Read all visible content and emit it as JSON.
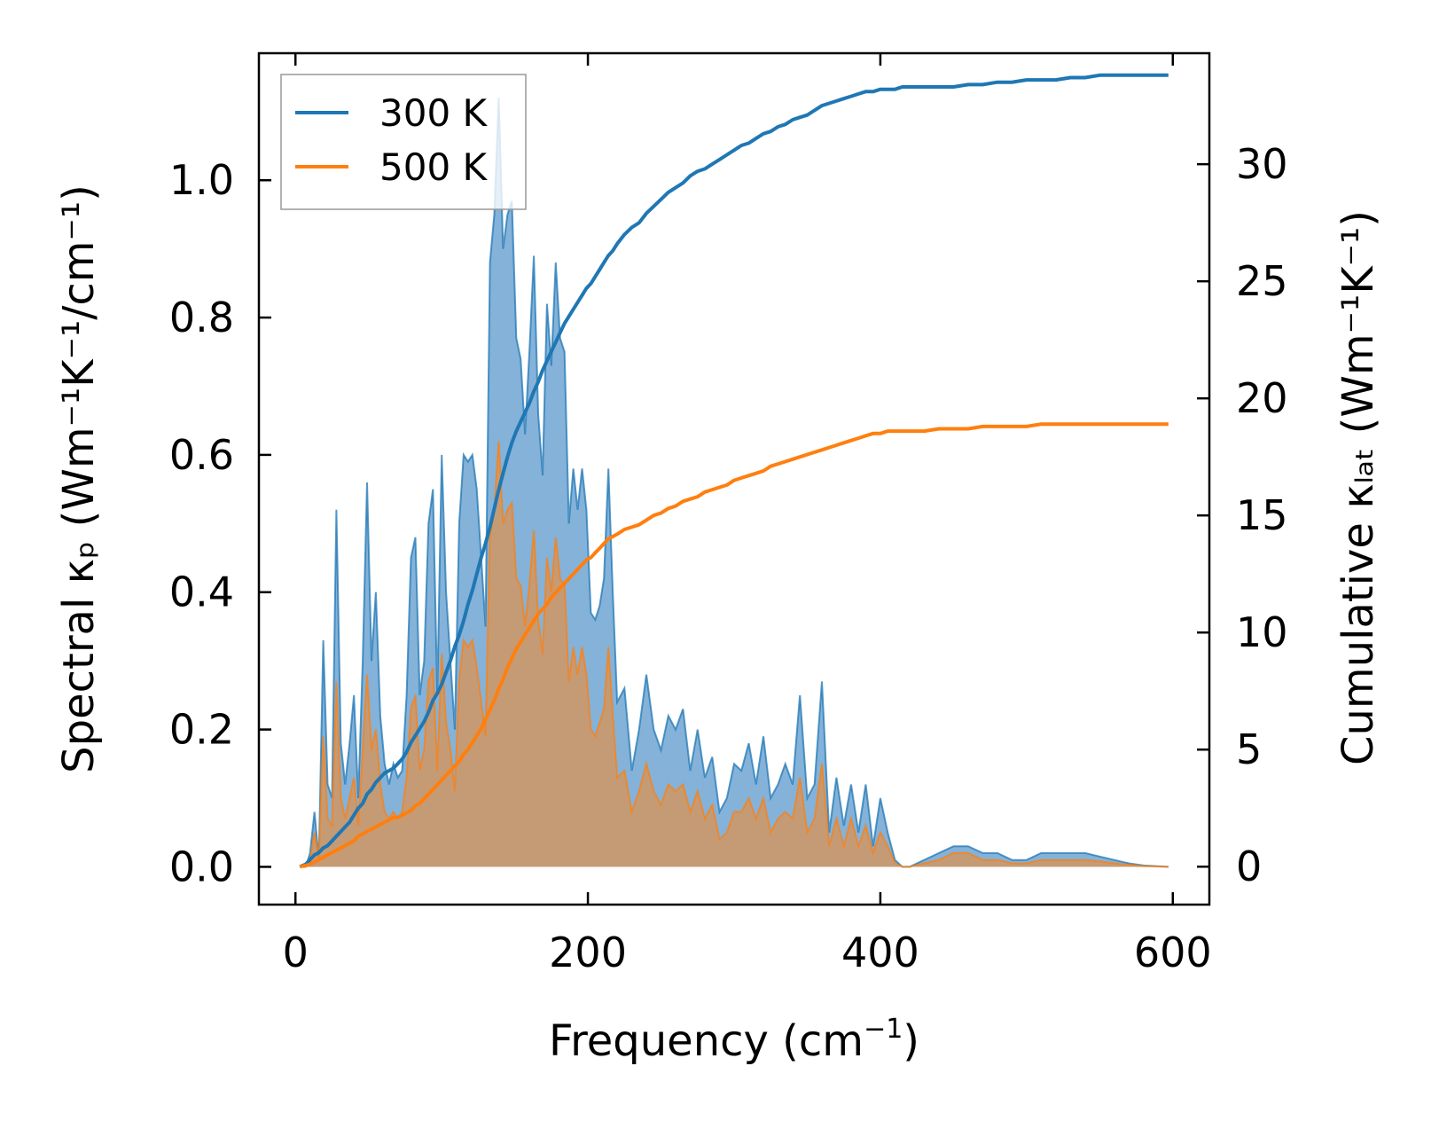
{
  "chart_data": {
    "type": "area+line",
    "title": "",
    "xlabel": "Frequency (cm",
    "xlabel_sup": "−1",
    "xlabel_tail": ")",
    "ylabel": "Spectral κₚ (Wm⁻¹K⁻¹/cm⁻¹)",
    "ylabel_right": "Cumulative κₗₐₜ (Wm⁻¹K⁻¹)",
    "xlim": [
      -25,
      625
    ],
    "ylim_left": [
      -0.055,
      1.185
    ],
    "ylim_right": [
      -1.62,
      34.74
    ],
    "xticks": [
      0,
      200,
      400,
      600
    ],
    "xtick_labels": [
      "0",
      "200",
      "400",
      "600"
    ],
    "yticks_left": [
      0.0,
      0.2,
      0.4,
      0.6,
      0.8,
      1.0
    ],
    "ytick_labels_left": [
      "0.0",
      "0.2",
      "0.4",
      "0.6",
      "0.8",
      "1.0"
    ],
    "yticks_right": [
      0,
      5,
      10,
      15,
      20,
      25,
      30
    ],
    "ytick_labels_right": [
      "0",
      "5",
      "10",
      "15",
      "20",
      "25",
      "30"
    ],
    "legend": {
      "position": "top-left",
      "entries": [
        "300 K",
        "500 K"
      ]
    },
    "colors": {
      "300K": "#1f77b4",
      "500K": "#ff7f0e",
      "fill300": "#6fa5d2",
      "fill500": "#c89a70"
    },
    "frequency": [
      3,
      7,
      10,
      13,
      16,
      19,
      22,
      25,
      28,
      31,
      34,
      37,
      40,
      43,
      46,
      49,
      52,
      55,
      58,
      61,
      64,
      67,
      70,
      73,
      76,
      79,
      82,
      85,
      88,
      91,
      94,
      97,
      100,
      103,
      106,
      109,
      112,
      115,
      118,
      121,
      124,
      127,
      130,
      133,
      136,
      139,
      142,
      145,
      148,
      151,
      154,
      157,
      160,
      163,
      166,
      169,
      172,
      175,
      178,
      181,
      184,
      187,
      190,
      193,
      196,
      199,
      202,
      205,
      208,
      211,
      214,
      217,
      220,
      225,
      230,
      235,
      240,
      245,
      250,
      255,
      260,
      265,
      270,
      275,
      280,
      285,
      290,
      295,
      300,
      305,
      310,
      315,
      320,
      325,
      330,
      335,
      340,
      345,
      350,
      355,
      360,
      365,
      370,
      375,
      380,
      385,
      390,
      395,
      400,
      405,
      410,
      415,
      420,
      430,
      440,
      450,
      460,
      470,
      480,
      490,
      500,
      510,
      520,
      530,
      540,
      550,
      560,
      570,
      580,
      597
    ],
    "series": [
      {
        "name": "300 K",
        "spectral": [
          0,
          0,
          0.02,
          0.08,
          0.01,
          0.33,
          0.12,
          0.1,
          0.52,
          0.18,
          0.12,
          0.18,
          0.25,
          0.1,
          0.3,
          0.56,
          0.3,
          0.4,
          0.22,
          0.15,
          0.12,
          0.15,
          0.13,
          0.14,
          0.25,
          0.45,
          0.48,
          0.25,
          0.3,
          0.5,
          0.55,
          0.25,
          0.6,
          0.4,
          0.3,
          0.2,
          0.5,
          0.6,
          0.59,
          0.6,
          0.55,
          0.45,
          0.35,
          0.88,
          0.95,
          1.12,
          0.9,
          0.95,
          0.97,
          0.77,
          0.74,
          0.63,
          0.75,
          0.89,
          0.66,
          0.57,
          0.82,
          0.73,
          0.88,
          0.77,
          0.75,
          0.5,
          0.58,
          0.52,
          0.58,
          0.52,
          0.37,
          0.36,
          0.38,
          0.42,
          0.58,
          0.4,
          0.24,
          0.26,
          0.14,
          0.2,
          0.28,
          0.2,
          0.17,
          0.22,
          0.2,
          0.23,
          0.14,
          0.2,
          0.13,
          0.16,
          0.08,
          0.1,
          0.15,
          0.14,
          0.18,
          0.12,
          0.19,
          0.1,
          0.12,
          0.15,
          0.12,
          0.25,
          0.1,
          0.12,
          0.27,
          0.05,
          0.13,
          0.06,
          0.12,
          0.05,
          0.12,
          0.03,
          0.1,
          0.05,
          0.01,
          0,
          0,
          0.01,
          0.02,
          0.03,
          0.03,
          0.02,
          0.02,
          0.01,
          0.01,
          0.02,
          0.02,
          0.02,
          0.02,
          0.015,
          0.01,
          0.005,
          0.002,
          0
        ],
        "cumulative": [
          0,
          0.1,
          0.3,
          0.5,
          0.6,
          0.8,
          0.9,
          1.1,
          1.3,
          1.5,
          1.7,
          1.9,
          2.2,
          2.5,
          2.7,
          3.1,
          3.3,
          3.6,
          3.8,
          4.0,
          4.1,
          4.2,
          4.4,
          4.6,
          4.9,
          5.3,
          5.6,
          5.9,
          6.2,
          6.6,
          7.1,
          7.4,
          7.8,
          8.3,
          8.8,
          9.4,
          9.9,
          10.5,
          11.2,
          11.8,
          12.5,
          13.2,
          13.8,
          14.5,
          15.3,
          16.1,
          16.8,
          17.5,
          18.1,
          18.6,
          19.0,
          19.4,
          19.8,
          20.3,
          20.7,
          21.2,
          21.6,
          22.0,
          22.4,
          22.8,
          23.2,
          23.5,
          23.8,
          24.1,
          24.4,
          24.7,
          24.9,
          25.2,
          25.5,
          25.8,
          26.1,
          26.3,
          26.6,
          27.0,
          27.3,
          27.5,
          27.9,
          28.2,
          28.5,
          28.8,
          29.0,
          29.2,
          29.5,
          29.7,
          29.8,
          30.0,
          30.2,
          30.4,
          30.6,
          30.8,
          30.9,
          31.1,
          31.3,
          31.4,
          31.6,
          31.7,
          31.9,
          32.0,
          32.1,
          32.3,
          32.5,
          32.6,
          32.7,
          32.8,
          32.9,
          33.0,
          33.1,
          33.1,
          33.2,
          33.2,
          33.2,
          33.3,
          33.3,
          33.3,
          33.3,
          33.3,
          33.4,
          33.4,
          33.5,
          33.5,
          33.6,
          33.6,
          33.6,
          33.7,
          33.7,
          33.8,
          33.8,
          33.8,
          33.8,
          33.8
        ]
      },
      {
        "name": "500 K",
        "spectral": [
          0,
          0,
          0.01,
          0.05,
          0.01,
          0.19,
          0.07,
          0.06,
          0.27,
          0.1,
          0.07,
          0.1,
          0.13,
          0.06,
          0.17,
          0.28,
          0.17,
          0.2,
          0.12,
          0.08,
          0.07,
          0.08,
          0.07,
          0.08,
          0.13,
          0.23,
          0.25,
          0.14,
          0.17,
          0.27,
          0.29,
          0.14,
          0.31,
          0.21,
          0.17,
          0.11,
          0.27,
          0.33,
          0.32,
          0.33,
          0.29,
          0.24,
          0.19,
          0.48,
          0.52,
          0.62,
          0.5,
          0.52,
          0.53,
          0.42,
          0.41,
          0.35,
          0.41,
          0.49,
          0.36,
          0.31,
          0.45,
          0.4,
          0.48,
          0.42,
          0.41,
          0.27,
          0.32,
          0.28,
          0.32,
          0.28,
          0.2,
          0.19,
          0.21,
          0.23,
          0.32,
          0.22,
          0.13,
          0.14,
          0.08,
          0.11,
          0.15,
          0.11,
          0.09,
          0.12,
          0.11,
          0.12,
          0.08,
          0.11,
          0.07,
          0.09,
          0.04,
          0.05,
          0.08,
          0.08,
          0.1,
          0.07,
          0.1,
          0.05,
          0.07,
          0.08,
          0.07,
          0.13,
          0.05,
          0.07,
          0.15,
          0.03,
          0.07,
          0.03,
          0.07,
          0.03,
          0.06,
          0.02,
          0.05,
          0.03,
          0.005,
          0,
          0,
          0.005,
          0.01,
          0.02,
          0.02,
          0.01,
          0.01,
          0.005,
          0.005,
          0.01,
          0.01,
          0.01,
          0.01,
          0.008,
          0.005,
          0.003,
          0.001,
          0
        ],
        "cumulative": [
          0,
          0.05,
          0.1,
          0.2,
          0.3,
          0.4,
          0.5,
          0.6,
          0.7,
          0.8,
          0.9,
          1.0,
          1.1,
          1.3,
          1.4,
          1.5,
          1.6,
          1.7,
          1.8,
          1.9,
          2.0,
          2.1,
          2.1,
          2.2,
          2.3,
          2.4,
          2.6,
          2.7,
          2.9,
          3.1,
          3.3,
          3.5,
          3.7,
          3.9,
          4.1,
          4.3,
          4.5,
          4.8,
          5.0,
          5.3,
          5.6,
          5.9,
          6.3,
          6.7,
          7.1,
          7.6,
          8.0,
          8.5,
          8.9,
          9.3,
          9.6,
          9.9,
          10.2,
          10.5,
          10.8,
          11.0,
          11.2,
          11.5,
          11.7,
          11.9,
          12.1,
          12.3,
          12.5,
          12.7,
          12.9,
          13.1,
          13.2,
          13.4,
          13.6,
          13.8,
          14.0,
          14.1,
          14.2,
          14.4,
          14.5,
          14.6,
          14.8,
          15.0,
          15.1,
          15.3,
          15.4,
          15.6,
          15.7,
          15.8,
          16.0,
          16.1,
          16.2,
          16.3,
          16.5,
          16.6,
          16.7,
          16.8,
          16.9,
          17.1,
          17.2,
          17.3,
          17.4,
          17.5,
          17.6,
          17.7,
          17.8,
          17.9,
          18.0,
          18.1,
          18.2,
          18.3,
          18.4,
          18.5,
          18.5,
          18.6,
          18.6,
          18.6,
          18.6,
          18.6,
          18.7,
          18.7,
          18.7,
          18.8,
          18.8,
          18.8,
          18.8,
          18.9,
          18.9,
          18.9,
          18.9,
          18.9,
          18.9,
          18.9,
          18.9,
          18.9
        ]
      }
    ]
  }
}
